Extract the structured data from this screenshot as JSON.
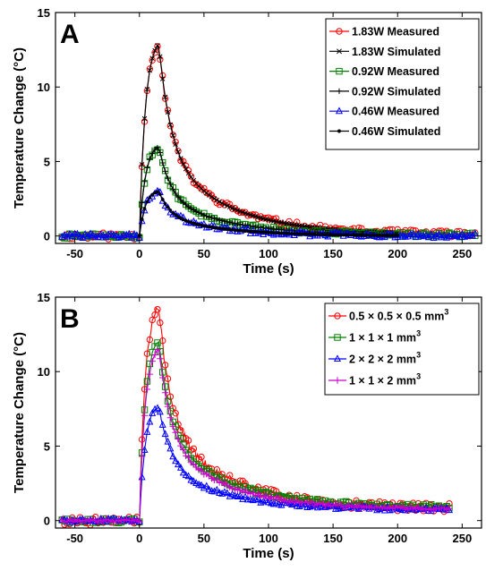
{
  "chart_data": [
    {
      "type": "line",
      "panel_label": "A",
      "xlabel": "Time (s)",
      "ylabel": "Temperature Change (°C)",
      "xlim": [
        -65,
        265
      ],
      "ylim": [
        -0.5,
        15
      ],
      "xticks": [
        -50,
        0,
        50,
        100,
        150,
        200,
        250
      ],
      "yticks": [
        0,
        5,
        10,
        15
      ],
      "grid": false,
      "legend_position": "top-right",
      "series": [
        {
          "name": "1.83W Measured",
          "color": "#ff0000",
          "marker": "circle",
          "style": "measured",
          "peak": 12.9,
          "x_range": [
            -60,
            260
          ],
          "tail": 0.1,
          "noise": 0.22
        },
        {
          "name": "1.83W Simulated",
          "color": "#000000",
          "marker": "x",
          "style": "simulated",
          "peak": 12.9,
          "x_range": [
            0,
            200
          ],
          "tail": 0.1,
          "noise": 0
        },
        {
          "name": "0.92W Measured",
          "color": "#008000",
          "marker": "square",
          "style": "measured",
          "peak": 6.0,
          "x_range": [
            -60,
            260
          ],
          "tail": 0.05,
          "noise": 0.15
        },
        {
          "name": "0.92W Simulated",
          "color": "#000000",
          "marker": "plus",
          "style": "simulated",
          "peak": 6.0,
          "x_range": [
            0,
            200
          ],
          "tail": 0.05,
          "noise": 0
        },
        {
          "name": "0.46W Measured",
          "color": "#0000ff",
          "marker": "triangle",
          "style": "measured",
          "peak": 3.0,
          "x_range": [
            -60,
            260
          ],
          "tail": 0.0,
          "noise": 0.15
        },
        {
          "name": "0.46W Simulated",
          "color": "#000000",
          "marker": "dot",
          "style": "simulated",
          "peak": 3.0,
          "x_range": [
            0,
            200
          ],
          "tail": 0.0,
          "noise": 0
        }
      ]
    },
    {
      "type": "line",
      "panel_label": "B",
      "xlabel": "Time (s)",
      "ylabel": "Temperature Change (°C)",
      "xlim": [
        -65,
        265
      ],
      "ylim": [
        -0.5,
        15
      ],
      "xticks": [
        -50,
        0,
        50,
        100,
        150,
        200,
        250
      ],
      "yticks": [
        0,
        5,
        10,
        15
      ],
      "grid": false,
      "legend_position": "top-right",
      "series": [
        {
          "name": "0.5 × 0.5 × 0.5 mm",
          "sup": "3",
          "color": "#ff0000",
          "marker": "circle",
          "style": "measured",
          "peak": 14.3,
          "x_range": [
            -60,
            240
          ],
          "tail": 0.8,
          "noise": 0.3
        },
        {
          "name": "1 × 1 × 1 mm",
          "sup": "3",
          "color": "#008000",
          "marker": "square",
          "style": "measured",
          "peak": 12.1,
          "x_range": [
            -60,
            240
          ],
          "tail": 0.9,
          "noise": 0.15
        },
        {
          "name": "2 × 2 × 2 mm",
          "sup": "3",
          "color": "#0000ff",
          "marker": "triangle",
          "style": "measured",
          "peak": 7.7,
          "x_range": [
            -60,
            240
          ],
          "tail": 0.7,
          "noise": 0.12
        },
        {
          "name": "1 × 1 × 2 mm",
          "sup": "3",
          "color": "#cc00cc",
          "marker": "plus",
          "style": "measured",
          "peak": 11.5,
          "x_range": [
            -60,
            240
          ],
          "tail": 0.75,
          "noise": 0.1
        }
      ]
    }
  ]
}
